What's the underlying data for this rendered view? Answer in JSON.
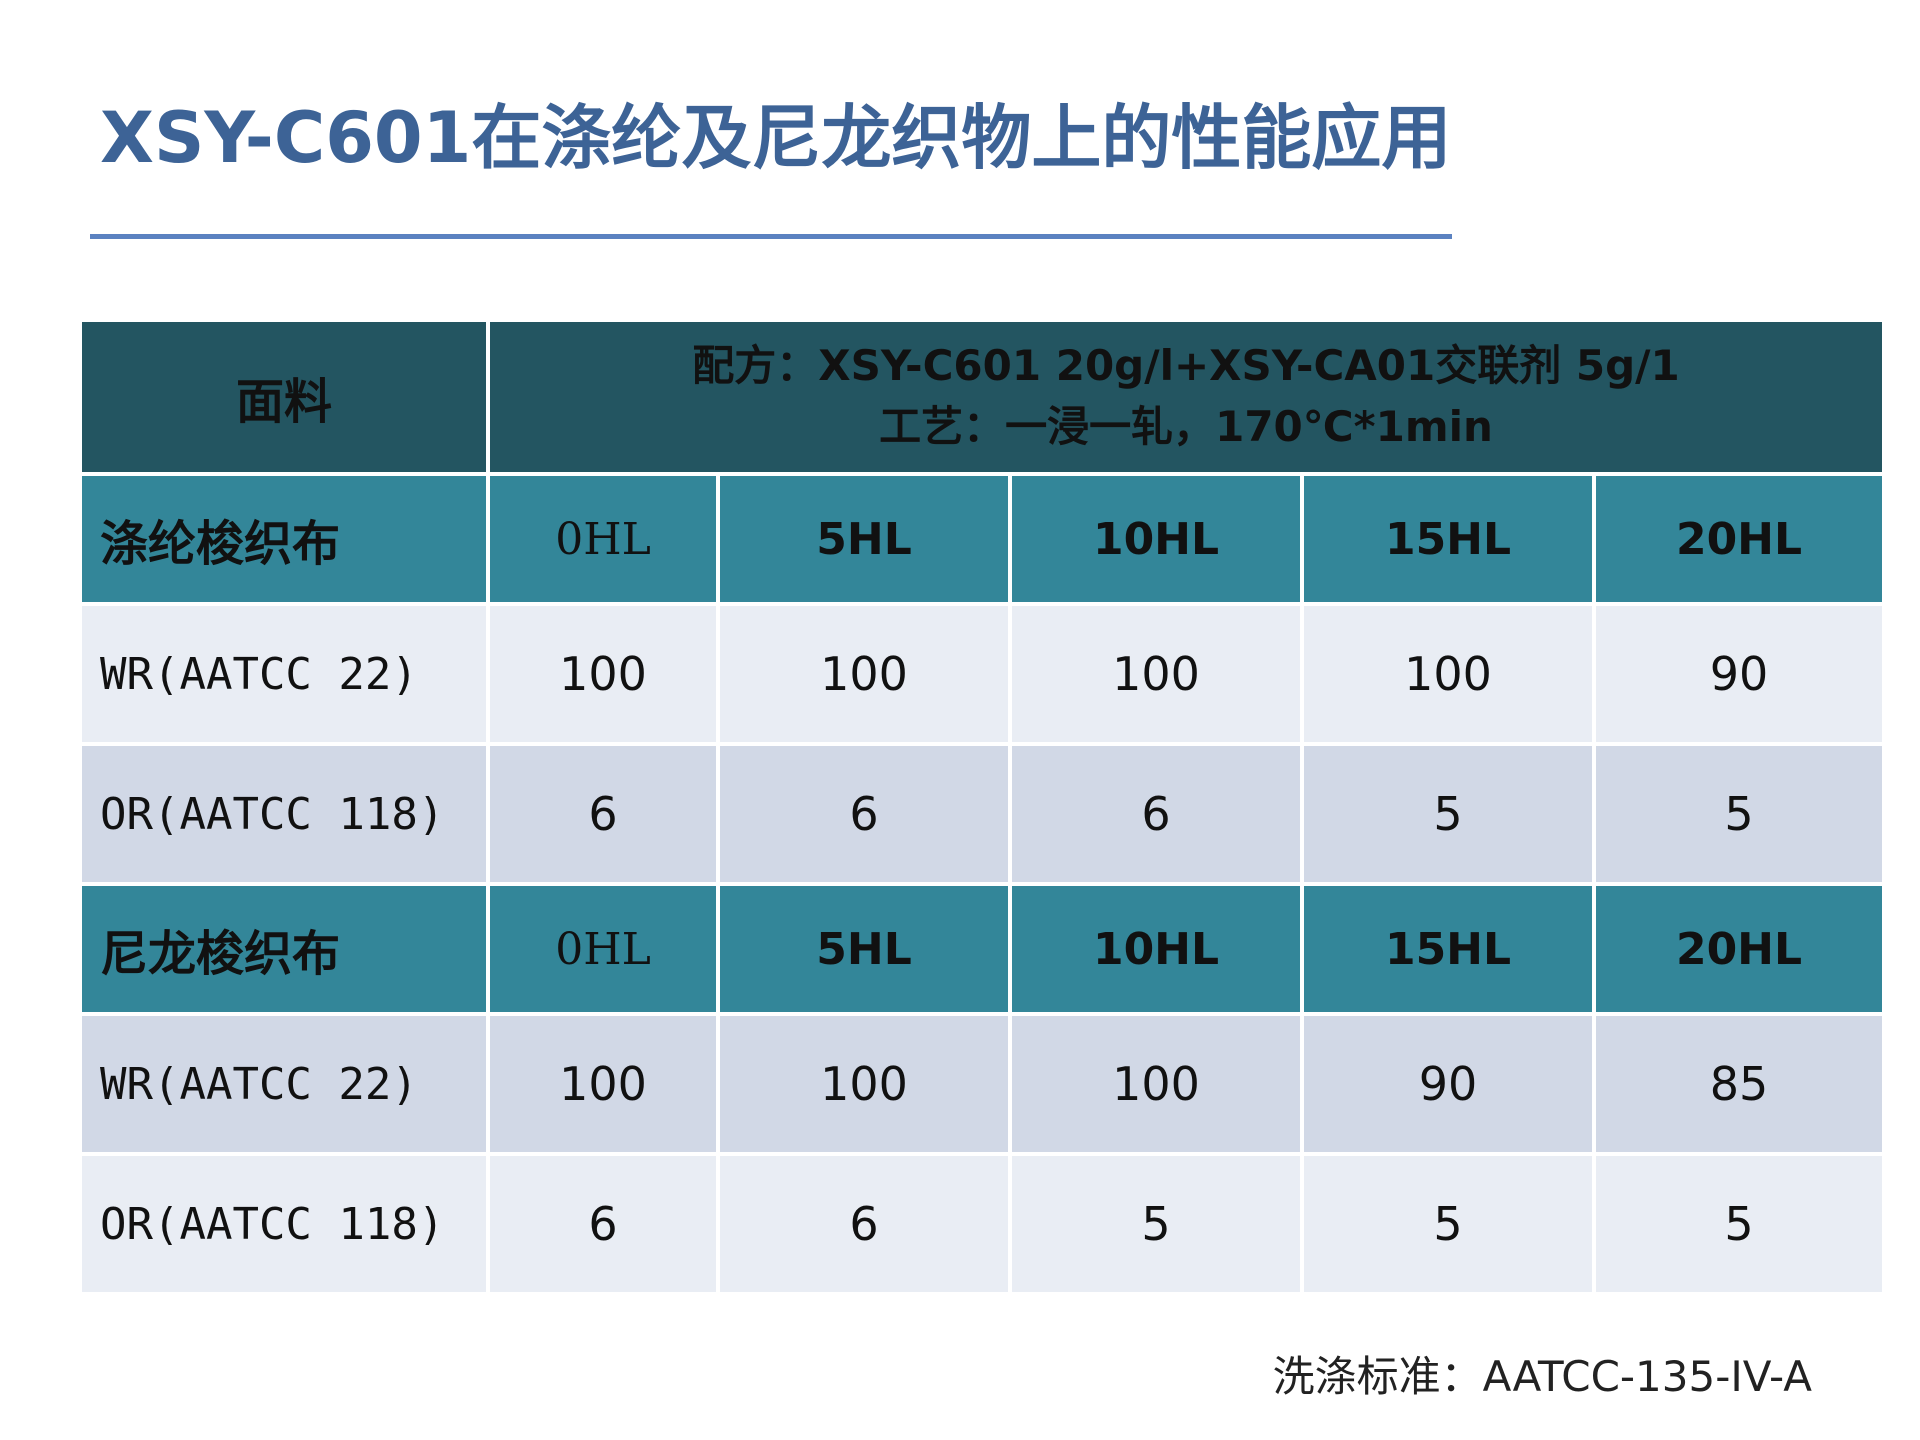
{
  "title": "XSY-C601在涤纶及尼龙织物上的性能应用",
  "table": {
    "header_label": "面料",
    "formula_line1": "配方：XSY-C601  20g/l+XSY-CA01交联剂  5g/1",
    "formula_line2": "工艺：一浸一轧，170℃*1min",
    "sections": [
      {
        "fabric": "涤纶梭织布",
        "wash_levels": [
          "0HL",
          "5HL",
          "10HL",
          "15HL",
          "20HL"
        ],
        "rows": [
          {
            "label": "WR(AATCC 22)",
            "values": [
              "100",
              "100",
              "100",
              "100",
              "90"
            ]
          },
          {
            "label": "OR(AATCC 118)",
            "values": [
              "6",
              "6",
              "6",
              "5",
              "5"
            ]
          }
        ]
      },
      {
        "fabric": "尼龙梭织布",
        "wash_levels": [
          "0HL",
          "5HL",
          "10HL",
          "15HL",
          "20HL"
        ],
        "rows": [
          {
            "label": "WR(AATCC 22)",
            "values": [
              "100",
              "100",
              "100",
              "90",
              "85"
            ]
          },
          {
            "label": "OR(AATCC 118)",
            "values": [
              "6",
              "6",
              "5",
              "5",
              "5"
            ]
          }
        ]
      }
    ]
  },
  "footnote": "洗涤标准：AATCC-135-IV-A",
  "colors": {
    "title": "#3d6396",
    "title_rule": "#5b82c1",
    "header_bg": "#235561",
    "section_bg": "#338699",
    "row_light": "#e9edf4",
    "row_dark": "#d1d8e6"
  }
}
